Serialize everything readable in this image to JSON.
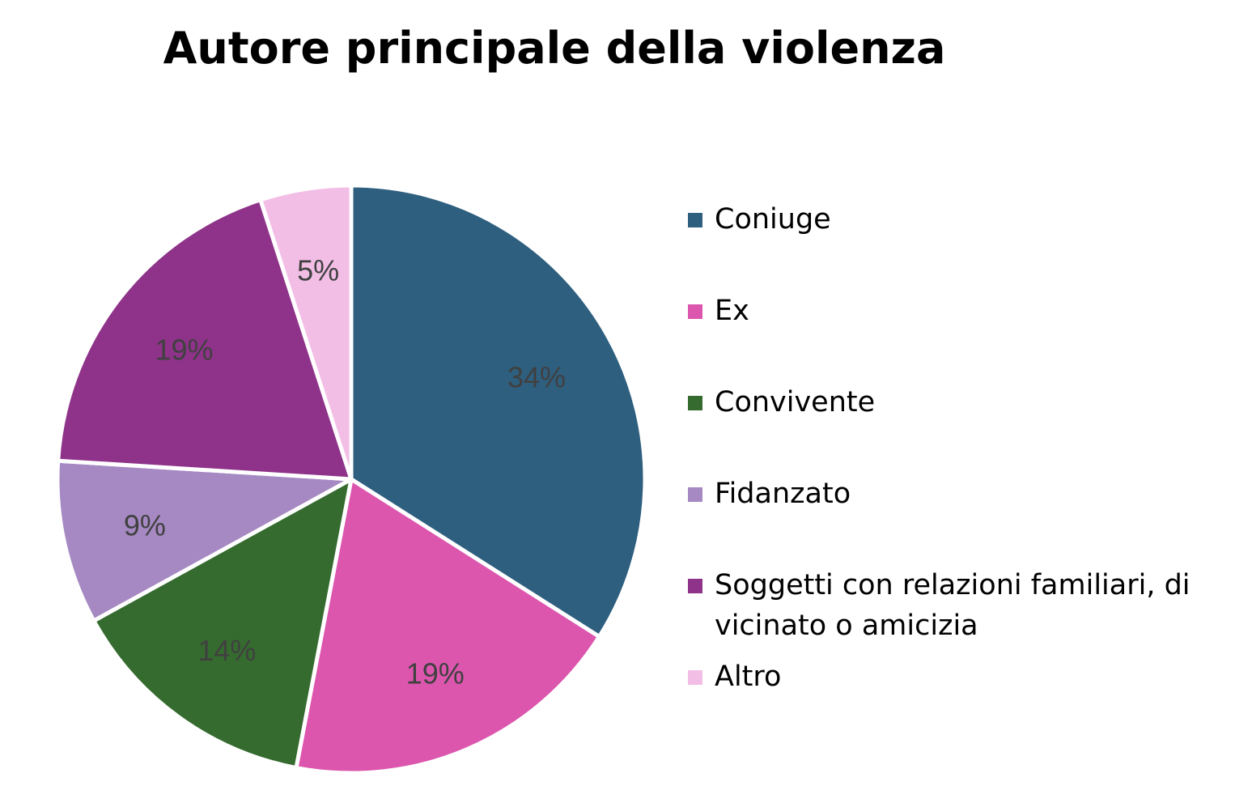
{
  "title": "Autore principale della violenza",
  "chart_data": {
    "type": "pie",
    "title": "Autore principale della violenza",
    "legend_position": "right",
    "slices": [
      {
        "label": "Coniuge",
        "value": 34,
        "display": "34%",
        "color": "#2E5F7F"
      },
      {
        "label": "Ex",
        "value": 19,
        "display": "19%",
        "color": "#DC56AE"
      },
      {
        "label": "Convivente",
        "value": 14,
        "display": "14%",
        "color": "#356B2F"
      },
      {
        "label": "Fidanzato",
        "value": 9,
        "display": "9%",
        "color": "#A689C3"
      },
      {
        "label": "Soggetti con relazioni familiari, di vicinato o amicizia",
        "value": 19,
        "display": "19%",
        "color": "#8E3389"
      },
      {
        "label": "Altro",
        "value": 5,
        "display": "5%",
        "color": "#F2BEE6"
      }
    ]
  }
}
